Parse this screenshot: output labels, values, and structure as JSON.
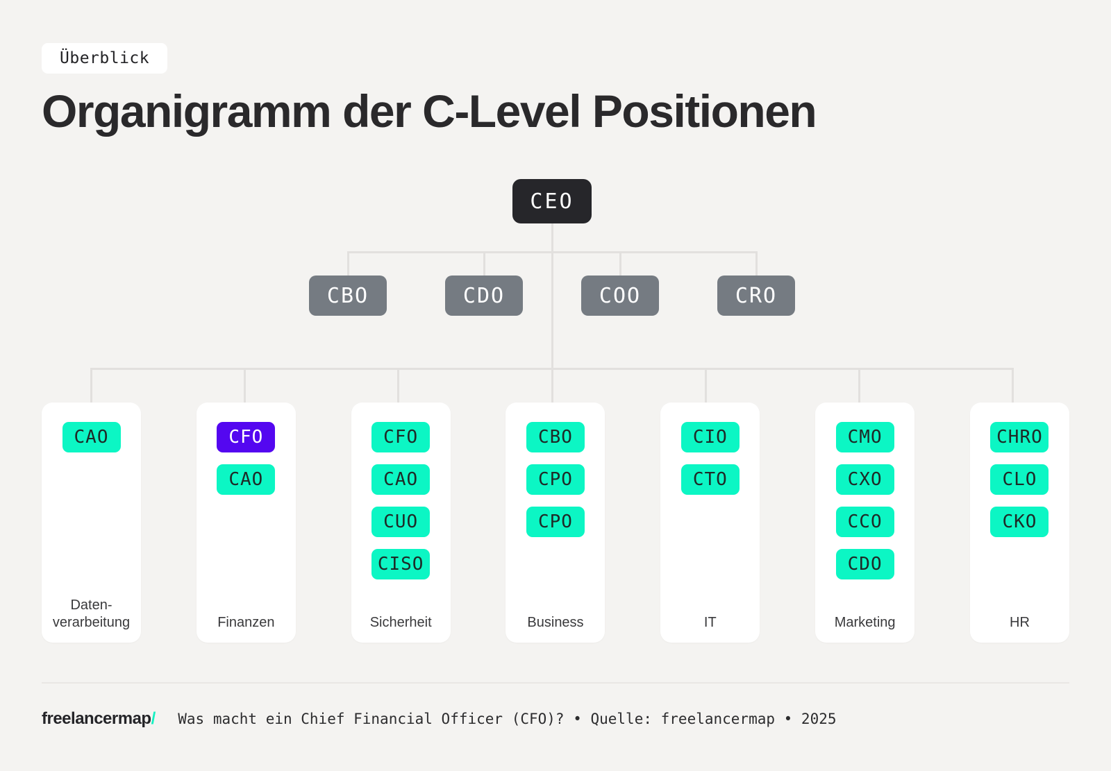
{
  "badge": {
    "label": "Überblick"
  },
  "title": "Organigramm der C-Level Positionen",
  "org": {
    "root": {
      "label": "CEO"
    },
    "executives": [
      {
        "label": "CBO"
      },
      {
        "label": "CDO"
      },
      {
        "label": "COO"
      },
      {
        "label": "CRO"
      }
    ],
    "departments": [
      {
        "name": "Datenverarbeitung",
        "label_lines": [
          "Daten-",
          "verarbeitung"
        ],
        "roles": [
          {
            "label": "CAO",
            "variant": "teal"
          }
        ]
      },
      {
        "name": "Finanzen",
        "label_lines": [
          "Finanzen"
        ],
        "roles": [
          {
            "label": "CFO",
            "variant": "purple"
          },
          {
            "label": "CAO",
            "variant": "teal"
          }
        ]
      },
      {
        "name": "Sicherheit",
        "label_lines": [
          "Sicherheit"
        ],
        "roles": [
          {
            "label": "CFO",
            "variant": "teal"
          },
          {
            "label": "CAO",
            "variant": "teal"
          },
          {
            "label": "CUO",
            "variant": "teal"
          },
          {
            "label": "CISO",
            "variant": "teal"
          }
        ]
      },
      {
        "name": "Business",
        "label_lines": [
          "Business"
        ],
        "roles": [
          {
            "label": "CBO",
            "variant": "teal"
          },
          {
            "label": "CPO",
            "variant": "teal"
          },
          {
            "label": "CPO",
            "variant": "teal"
          }
        ]
      },
      {
        "name": "IT",
        "label_lines": [
          "IT"
        ],
        "roles": [
          {
            "label": "CIO",
            "variant": "teal"
          },
          {
            "label": "CTO",
            "variant": "teal"
          }
        ]
      },
      {
        "name": "Marketing",
        "label_lines": [
          "Marketing"
        ],
        "roles": [
          {
            "label": "CMO",
            "variant": "teal"
          },
          {
            "label": "CXO",
            "variant": "teal"
          },
          {
            "label": "CCO",
            "variant": "teal"
          },
          {
            "label": "CDO",
            "variant": "teal"
          }
        ]
      },
      {
        "name": "HR",
        "label_lines": [
          "HR"
        ],
        "roles": [
          {
            "label": "CHRO",
            "variant": "teal"
          },
          {
            "label": "CLO",
            "variant": "teal"
          },
          {
            "label": "CKO",
            "variant": "teal"
          }
        ]
      }
    ]
  },
  "footer": {
    "logo": "freelancermap",
    "logo_slash": "/",
    "caption": "Was macht ein Chief Financial Officer (CFO)? • Quelle: freelancermap • 2025"
  },
  "colors": {
    "background": "#f4f3f1",
    "card": "#ffffff",
    "ceo_node": "#26262a",
    "executive_node": "#757b82",
    "role_teal": "#0cf6c4",
    "role_purple": "#5407f0",
    "connector": "#e2e0de",
    "accent": "#14f1c2"
  }
}
